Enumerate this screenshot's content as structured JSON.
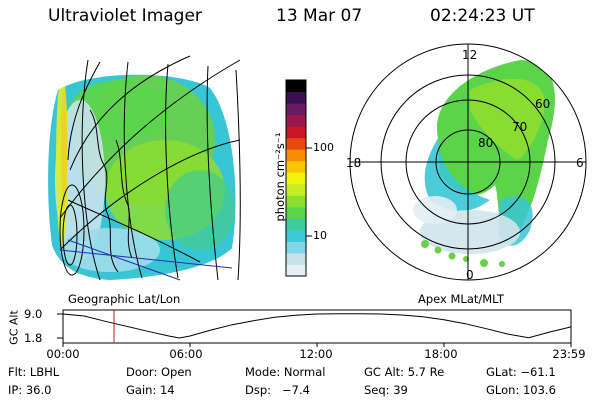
{
  "header": {
    "instrument": "Ultraviolet Imager",
    "date": "13 Mar 07",
    "time": "02:24:23 UT"
  },
  "left_panel": {
    "caption": "Geographic Lat/Lon"
  },
  "right_panel": {
    "caption": "Apex MLat/MLT",
    "mlt_labels": {
      "top": "12",
      "left": "18",
      "right": "6",
      "bottom": "0"
    },
    "mlat_labels": [
      "80",
      "70",
      "60"
    ]
  },
  "colorbar": {
    "unit_label": "photon cm⁻²s⁻¹",
    "tick_labels": [
      "100",
      "10"
    ],
    "colors": [
      "#e8eff3",
      "#c8e2ec",
      "#85d5e8",
      "#3bcad8",
      "#3ecc9e",
      "#5bd44a",
      "#8ddf2f",
      "#c6ec24",
      "#f1f311",
      "#f9c605",
      "#f88c05",
      "#e84a0e",
      "#c81727",
      "#991848",
      "#6a1a63",
      "#3a0f52",
      "#000000"
    ]
  },
  "altitude_plot": {
    "ylabel": "GC Alt",
    "y_ticks": [
      "9.0",
      "1.8"
    ],
    "x_ticks": [
      "00:00",
      "06:00",
      "12:00",
      "18:00",
      "23:59"
    ]
  },
  "chart_data": {
    "type": "line",
    "title": "",
    "xlabel": "",
    "ylabel": "GC Alt",
    "xlim": [
      0,
      24
    ],
    "ylim": [
      1.8,
      9.0
    ],
    "series": [
      {
        "x": [
          0,
          1,
          2,
          3,
          4,
          5,
          5.5,
          6,
          7,
          8,
          9,
          10,
          11,
          12,
          13,
          14,
          15,
          16,
          17,
          18,
          19,
          20,
          21,
          22,
          23,
          23.98
        ],
        "values": [
          9.0,
          8.4,
          6.8,
          5.3,
          3.8,
          2.4,
          1.8,
          2.4,
          4.2,
          5.8,
          7.0,
          8.0,
          8.6,
          9.0,
          9.1,
          9.1,
          9.0,
          8.7,
          8.2,
          7.3,
          6.1,
          4.6,
          3.0,
          1.9,
          3.6,
          5.1
        ]
      }
    ],
    "marker_time": 2.41,
    "marker_color": "#d01010"
  },
  "info": {
    "flt": "Flt: LBHL",
    "door": "Door: Open",
    "mode": "Mode: Normal",
    "gc_alt": "GC Alt: 5.7 Re",
    "glat": "GLat: −61.1",
    "ip": "IP: 36.0",
    "gain": "Gain: 14",
    "dsp": "Dsp:   −7.4",
    "seq": "Seq: 39",
    "glon": "GLon: 103.6"
  }
}
